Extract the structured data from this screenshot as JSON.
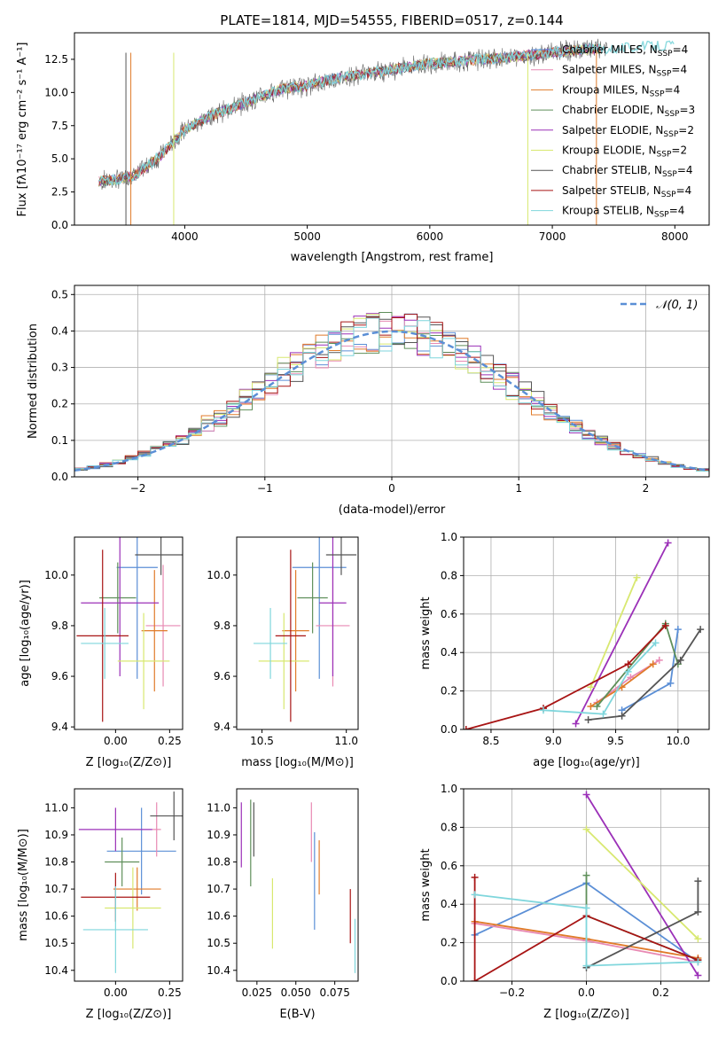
{
  "chart_data": [
    {
      "type": "line",
      "title": "PLATE=1814, MJD=54555, FIBERID=0517, z=0.144",
      "xlabel": "wavelength [Angstrom, rest frame]",
      "ylabel": "Flux [fλ10⁻¹⁷ erg cm⁻² s⁻¹ A⁻¹]",
      "xlim": [
        3100,
        8280
      ],
      "ylim": [
        0,
        14.5
      ],
      "xticks": [
        "4000",
        "5000",
        "6000",
        "7000",
        "8000"
      ],
      "yticks": [
        "0.0",
        "2.5",
        "5.0",
        "7.5",
        "10.0",
        "12.5"
      ],
      "legend_position": "upper right",
      "data_spectrum": {
        "x": [
          3300,
          3450,
          3600,
          3800,
          4000,
          4200,
          4400,
          4600,
          4800,
          5000,
          5200,
          5400,
          5600,
          5800,
          6000,
          6200,
          6400,
          6600,
          6800,
          7000,
          7200,
          7400,
          7600,
          7800,
          8000
        ],
        "y": [
          3.3,
          3.4,
          3.8,
          5.2,
          7.2,
          8.2,
          8.9,
          9.6,
          10.3,
          10.5,
          11.0,
          11.3,
          11.6,
          11.9,
          12.2,
          12.3,
          12.5,
          12.6,
          12.8,
          13.0,
          13.2,
          13.3,
          13.4,
          13.5,
          13.6
        ]
      },
      "series": [
        {
          "name": "Chabrier MILES, N_SSP=4",
          "color": "#5b8fd6"
        },
        {
          "name": "Salpeter MILES, N_SSP=4",
          "color": "#e889b3"
        },
        {
          "name": "Kroupa MILES, N_SSP=4",
          "color": "#e07b2a"
        },
        {
          "name": "Chabrier ELODIE, N_SSP=3",
          "color": "#5f8f5a"
        },
        {
          "name": "Salpeter ELODIE, N_SSP=2",
          "color": "#9b30b8"
        },
        {
          "name": "Kroupa ELODIE, N_SSP=2",
          "color": "#d8e870"
        },
        {
          "name": "Chabrier STELIB, N_SSP=4",
          "color": "#555555"
        },
        {
          "name": "Salpeter STELIB, N_SSP=4",
          "color": "#a81414"
        },
        {
          "name": "Kroupa STELIB, N_SSP=4",
          "color": "#7fd6dc"
        }
      ]
    },
    {
      "type": "line",
      "xlabel": "(data-model)/error",
      "ylabel": "Normed distribution",
      "xlim": [
        -2.5,
        2.5
      ],
      "ylim": [
        0,
        0.525
      ],
      "xticks": [
        "−2",
        "−1",
        "0",
        "1",
        "2"
      ],
      "yticks": [
        "0.0",
        "0.1",
        "0.2",
        "0.3",
        "0.4",
        "0.5"
      ],
      "grid": true,
      "legend_position": "upper right",
      "gaussian_label": "𝒩(0, 1)",
      "hist_bin_width": 0.1,
      "hist_range": [
        -2.5,
        2.5
      ]
    },
    {
      "type": "scatter",
      "xlabel": "Z [log₁₀(Z/Z⊙)]",
      "ylabel": "age  [log₁₀(age/yr)]",
      "xlim": [
        -0.19,
        0.31
      ],
      "ylim": [
        9.39,
        10.15
      ],
      "xticks": [
        {
          "v": 0.0,
          "t": "0.00"
        },
        {
          "v": 0.25,
          "t": "0.25"
        }
      ],
      "yticks": [
        {
          "v": 9.4,
          "t": "9.4"
        },
        {
          "v": 9.6,
          "t": "9.6"
        },
        {
          "v": 9.8,
          "t": "9.8"
        },
        {
          "v": 10.0,
          "t": "10.0"
        }
      ],
      "points": [
        {
          "x": 0.1,
          "xe": 0.095,
          "y": 10.03,
          "ye": 0.44,
          "c": "#5b8fd6"
        },
        {
          "x": 0.22,
          "xe": 0.08,
          "y": 9.8,
          "ye": 0.24,
          "c": "#e889b3"
        },
        {
          "x": 0.18,
          "xe": 0.06,
          "y": 9.78,
          "ye": 0.24,
          "c": "#e07b2a"
        },
        {
          "x": 0.01,
          "xe": 0.085,
          "y": 9.91,
          "ye": 0.14,
          "c": "#5f8f5a"
        },
        {
          "x": 0.02,
          "xe": 0.18,
          "y": 9.89,
          "ye": 0.29,
          "c": "#9b30b8"
        },
        {
          "x": 0.13,
          "xe": 0.12,
          "y": 9.66,
          "ye": 0.19,
          "c": "#d8e870"
        },
        {
          "x": 0.21,
          "xe": 0.12,
          "y": 10.08,
          "ye": 0.08,
          "c": "#555555"
        },
        {
          "x": -0.06,
          "xe": 0.12,
          "y": 9.76,
          "ye": 0.34,
          "c": "#a81414"
        },
        {
          "x": -0.05,
          "xe": 0.11,
          "y": 9.73,
          "ye": 0.14,
          "c": "#7fd6dc"
        }
      ]
    },
    {
      "type": "scatter",
      "xlabel": "mass [log₁₀(M/M⊙)]",
      "xlim": [
        10.35,
        11.07
      ],
      "ylim": [
        9.39,
        10.15
      ],
      "xticks": [
        {
          "v": 10.5,
          "t": "10.5"
        },
        {
          "v": 11.0,
          "t": "11.0"
        }
      ],
      "yticks": [
        {
          "v": 9.4,
          "t": "9.4"
        },
        {
          "v": 9.6,
          "t": "9.6"
        },
        {
          "v": 9.8,
          "t": "9.8"
        },
        {
          "v": 10.0,
          "t": "10.0"
        }
      ],
      "points": [
        {
          "x": 10.84,
          "xe": 0.16,
          "y": 10.03,
          "ye": 0.44,
          "c": "#5b8fd6"
        },
        {
          "x": 10.92,
          "xe": 0.1,
          "y": 9.8,
          "ye": 0.24,
          "c": "#e889b3"
        },
        {
          "x": 10.7,
          "xe": 0.08,
          "y": 9.78,
          "ye": 0.24,
          "c": "#e07b2a"
        },
        {
          "x": 10.8,
          "xe": 0.09,
          "y": 9.91,
          "ye": 0.14,
          "c": "#5f8f5a"
        },
        {
          "x": 10.92,
          "xe": 0.08,
          "y": 9.89,
          "ye": 0.29,
          "c": "#9b30b8"
        },
        {
          "x": 10.63,
          "xe": 0.15,
          "y": 9.66,
          "ye": 0.19,
          "c": "#d8e870"
        },
        {
          "x": 10.97,
          "xe": 0.09,
          "y": 10.08,
          "ye": 0.08,
          "c": "#555555"
        },
        {
          "x": 10.67,
          "xe": 0.09,
          "y": 9.76,
          "ye": 0.34,
          "c": "#a81414"
        },
        {
          "x": 10.55,
          "xe": 0.1,
          "y": 9.73,
          "ye": 0.14,
          "c": "#7fd6dc"
        }
      ]
    },
    {
      "type": "line",
      "xlabel": "age  [log₁₀(age/yr)]",
      "ylabel": "mass weight",
      "xlim": [
        8.28,
        10.25
      ],
      "ylim": [
        0,
        1.0
      ],
      "xticks": [
        {
          "v": 8.5,
          "t": "8.5"
        },
        {
          "v": 9.0,
          "t": "9.0"
        },
        {
          "v": 9.5,
          "t": "9.5"
        },
        {
          "v": 10.0,
          "t": "10.0"
        }
      ],
      "yticks": [
        {
          "v": 0,
          "t": "0.0"
        },
        {
          "v": 0.2,
          "t": "0.2"
        },
        {
          "v": 0.4,
          "t": "0.4"
        },
        {
          "v": 0.6,
          "t": "0.6"
        },
        {
          "v": 0.8,
          "t": "0.8"
        },
        {
          "v": 1.0,
          "t": "1.0"
        }
      ],
      "grid": true,
      "series": [
        {
          "c": "#5b8fd6",
          "x": [
            9.55,
            9.94,
            10.0
          ],
          "y": [
            0.1,
            0.24,
            0.52
          ]
        },
        {
          "c": "#e889b3",
          "x": [
            9.35,
            9.62,
            9.85
          ],
          "y": [
            0.14,
            0.27,
            0.36
          ]
        },
        {
          "c": "#e07b2a",
          "x": [
            9.3,
            9.55,
            9.8
          ],
          "y": [
            0.12,
            0.22,
            0.34
          ]
        },
        {
          "c": "#5f8f5a",
          "x": [
            9.35,
            9.9,
            10.0
          ],
          "y": [
            0.12,
            0.55,
            0.34
          ]
        },
        {
          "c": "#9b30b8",
          "x": [
            9.18,
            9.92
          ],
          "y": [
            0.03,
            0.97
          ]
        },
        {
          "c": "#d8e870",
          "x": [
            9.3,
            9.67
          ],
          "y": [
            0.22,
            0.79
          ]
        },
        {
          "c": "#555555",
          "x": [
            9.28,
            9.55,
            10.02,
            10.18
          ],
          "y": [
            0.05,
            0.07,
            0.36,
            0.52
          ]
        },
        {
          "c": "#a81414",
          "x": [
            8.3,
            8.92,
            9.6,
            9.9
          ],
          "y": [
            0.0,
            0.11,
            0.34,
            0.54
          ]
        },
        {
          "c": "#7fd6dc",
          "x": [
            8.92,
            9.4,
            9.6,
            9.82
          ],
          "y": [
            0.1,
            0.08,
            0.3,
            0.45
          ]
        }
      ]
    },
    {
      "type": "scatter",
      "xlabel": "Z [log₁₀(Z/Z⊙)]",
      "ylabel": "mass [log₁₀(M/M⊙)]",
      "xlim": [
        -0.19,
        0.31
      ],
      "ylim": [
        10.36,
        11.07
      ],
      "xticks": [
        {
          "v": 0.0,
          "t": "0.00"
        },
        {
          "v": 0.25,
          "t": "0.25"
        }
      ],
      "yticks": [
        {
          "v": 10.4,
          "t": "10.4"
        },
        {
          "v": 10.5,
          "t": "10.5"
        },
        {
          "v": 10.6,
          "t": "10.6"
        },
        {
          "v": 10.7,
          "t": "10.7"
        },
        {
          "v": 10.8,
          "t": "10.8"
        },
        {
          "v": 10.9,
          "t": "10.9"
        },
        {
          "v": 11.0,
          "t": "11.0"
        }
      ],
      "points": [
        {
          "x": 0.12,
          "xe": 0.16,
          "y": 10.84,
          "ye": 0.16,
          "c": "#5b8fd6"
        },
        {
          "x": 0.19,
          "xe": 0.02,
          "y": 10.92,
          "ye": 0.1,
          "c": "#e889b3"
        },
        {
          "x": 0.1,
          "xe": 0.11,
          "y": 10.7,
          "ye": 0.08,
          "c": "#e07b2a"
        },
        {
          "x": 0.03,
          "xe": 0.08,
          "y": 10.8,
          "ye": 0.09,
          "c": "#5f8f5a"
        },
        {
          "x": 0.0,
          "xe": 0.17,
          "y": 10.92,
          "ye": 0.08,
          "c": "#9b30b8"
        },
        {
          "x": 0.08,
          "xe": 0.13,
          "y": 10.63,
          "ye": 0.15,
          "c": "#d8e870"
        },
        {
          "x": 0.27,
          "xe": 0.11,
          "y": 10.97,
          "ye": 0.09,
          "c": "#555555"
        },
        {
          "x": 0.0,
          "xe": 0.16,
          "y": 10.67,
          "ye": 0.09,
          "c": "#a81414"
        },
        {
          "x": 0.0,
          "xe": 0.15,
          "y": 10.55,
          "ye": 0.16,
          "c": "#7fd6dc"
        }
      ]
    },
    {
      "type": "scatter",
      "xlabel": "E(B-V)",
      "xlim": [
        0.012,
        0.09
      ],
      "ylim": [
        10.36,
        11.07
      ],
      "xticks": [
        {
          "v": 0.025,
          "t": "0.025"
        },
        {
          "v": 0.05,
          "t": "0.050"
        },
        {
          "v": 0.075,
          "t": "0.075"
        }
      ],
      "yticks": [
        {
          "v": 10.4,
          "t": "10.4"
        },
        {
          "v": 10.5,
          "t": "10.5"
        },
        {
          "v": 10.6,
          "t": "10.6"
        },
        {
          "v": 10.7,
          "t": "10.7"
        },
        {
          "v": 10.8,
          "t": "10.8"
        },
        {
          "v": 10.9,
          "t": "10.9"
        },
        {
          "v": 11.0,
          "t": "11.0"
        }
      ],
      "points": [
        {
          "x": 0.062,
          "y": 10.73,
          "ye": 0.18,
          "c": "#5b8fd6"
        },
        {
          "x": 0.06,
          "y": 10.91,
          "ye": 0.11,
          "c": "#e889b3"
        },
        {
          "x": 0.065,
          "y": 10.78,
          "ye": 0.1,
          "c": "#e07b2a"
        },
        {
          "x": 0.021,
          "y": 10.87,
          "ye": 0.16,
          "c": "#5f8f5a"
        },
        {
          "x": 0.015,
          "y": 10.9,
          "ye": 0.12,
          "c": "#9b30b8"
        },
        {
          "x": 0.035,
          "y": 10.61,
          "ye": 0.13,
          "c": "#d8e870"
        },
        {
          "x": 0.023,
          "y": 10.92,
          "ye": 0.1,
          "c": "#555555"
        },
        {
          "x": 0.085,
          "y": 10.6,
          "ye": 0.1,
          "c": "#a81414"
        },
        {
          "x": 0.088,
          "y": 10.49,
          "ye": 0.1,
          "c": "#7fd6dc"
        }
      ]
    },
    {
      "type": "line",
      "xlabel": "Z [log₁₀(Z/Z⊙)]",
      "ylabel": "mass weight",
      "xlim": [
        -0.33,
        0.33
      ],
      "ylim": [
        0,
        1.0
      ],
      "xticks": [
        {
          "v": -0.2,
          "t": "−0.2"
        },
        {
          "v": 0.0,
          "t": "0.0"
        },
        {
          "v": 0.2,
          "t": "0.2"
        }
      ],
      "yticks": [
        {
          "v": 0,
          "t": "0.0"
        },
        {
          "v": 0.2,
          "t": "0.2"
        },
        {
          "v": 0.4,
          "t": "0.4"
        },
        {
          "v": 0.6,
          "t": "0.6"
        },
        {
          "v": 0.8,
          "t": "0.8"
        },
        {
          "v": 1.0,
          "t": "1.0"
        }
      ],
      "grid": true,
      "series": [
        {
          "c": "#5b8fd6",
          "x": [
            -0.3,
            0.0,
            0.3
          ],
          "y": [
            0.24,
            0.51,
            0.1
          ]
        },
        {
          "c": "#e889b3",
          "x": [
            -0.3,
            0.0,
            0.3
          ],
          "y": [
            0.3,
            0.21,
            0.1
          ]
        },
        {
          "c": "#e07b2a",
          "x": [
            -0.3,
            0.0,
            0.3
          ],
          "y": [
            0.31,
            0.22,
            0.12
          ]
        },
        {
          "c": "#5f8f5a",
          "x": [
            0.0,
            0.0,
            0.3
          ],
          "y": [
            0.55,
            0.34,
            0.11
          ]
        },
        {
          "c": "#9b30b8",
          "x": [
            0.0,
            0.3
          ],
          "y": [
            0.97,
            0.03
          ]
        },
        {
          "c": "#d8e870",
          "x": [
            0.0,
            0.3
          ],
          "y": [
            0.79,
            0.22
          ]
        },
        {
          "c": "#555555",
          "x": [
            0.0,
            0.3,
            0.3
          ],
          "y": [
            0.07,
            0.36,
            0.52
          ]
        },
        {
          "c": "#a81414",
          "x": [
            -0.3,
            -0.3,
            0.0,
            0.3
          ],
          "y": [
            0.54,
            0.0,
            0.34,
            0.11
          ]
        },
        {
          "c": "#7fd6dc",
          "x": [
            -0.3,
            0.0,
            0.0,
            0.3
          ],
          "y": [
            0.45,
            0.38,
            0.08,
            0.1
          ]
        }
      ]
    }
  ]
}
